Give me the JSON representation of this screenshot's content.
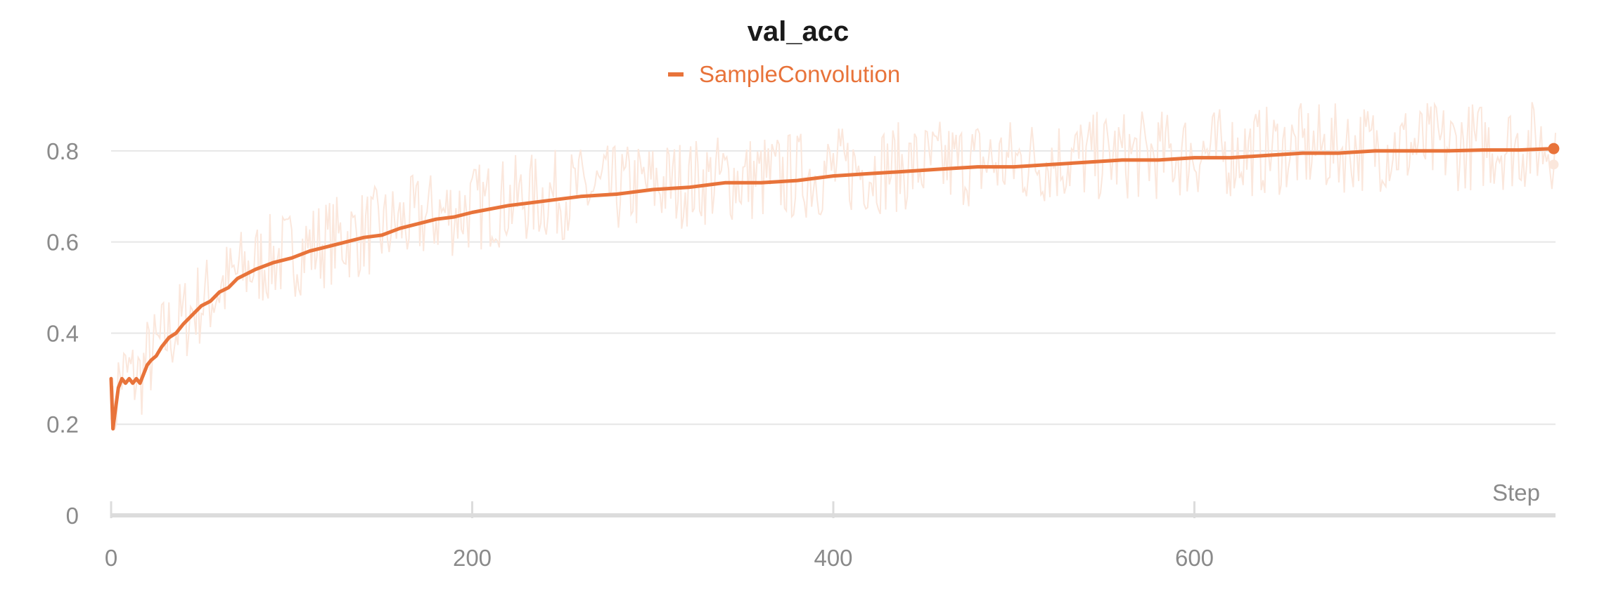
{
  "chart_data": {
    "type": "line",
    "title": "val_acc",
    "xlabel": "Step",
    "ylabel": "",
    "xlim": [
      0,
      800
    ],
    "ylim": [
      0,
      0.9
    ],
    "x_ticks": [
      "0",
      "200",
      "400",
      "600"
    ],
    "y_ticks": [
      "0",
      "0.2",
      "0.4",
      "0.6",
      "0.8"
    ],
    "grid": true,
    "legend": {
      "position": "top-center"
    },
    "colors": {
      "series": "#e8733a",
      "raw": "#fbe7dc",
      "grid": "#e6e6e6",
      "axis": "#dcdcdc"
    },
    "series": [
      {
        "name": "SampleConvolution",
        "smoothed": true,
        "x": [
          0,
          1,
          2,
          4,
          6,
          8,
          10,
          12,
          14,
          16,
          18,
          20,
          22,
          25,
          28,
          32,
          36,
          40,
          45,
          50,
          55,
          60,
          65,
          70,
          80,
          90,
          100,
          110,
          120,
          130,
          140,
          150,
          160,
          170,
          180,
          190,
          200,
          220,
          240,
          260,
          280,
          300,
          320,
          340,
          360,
          380,
          400,
          420,
          440,
          460,
          480,
          500,
          520,
          540,
          560,
          580,
          600,
          620,
          640,
          660,
          680,
          700,
          720,
          740,
          760,
          780,
          799
        ],
        "values": [
          0.3,
          0.19,
          0.22,
          0.28,
          0.3,
          0.29,
          0.3,
          0.29,
          0.3,
          0.29,
          0.31,
          0.33,
          0.34,
          0.35,
          0.37,
          0.39,
          0.4,
          0.42,
          0.44,
          0.46,
          0.47,
          0.49,
          0.5,
          0.52,
          0.54,
          0.555,
          0.565,
          0.58,
          0.59,
          0.6,
          0.61,
          0.615,
          0.63,
          0.64,
          0.65,
          0.655,
          0.665,
          0.68,
          0.69,
          0.7,
          0.705,
          0.715,
          0.72,
          0.73,
          0.73,
          0.735,
          0.745,
          0.75,
          0.755,
          0.76,
          0.765,
          0.765,
          0.77,
          0.775,
          0.78,
          0.78,
          0.785,
          0.785,
          0.79,
          0.795,
          0.795,
          0.8,
          0.8,
          0.8,
          0.802,
          0.802,
          0.805
        ]
      }
    ],
    "last_raw_value": 0.77
  }
}
